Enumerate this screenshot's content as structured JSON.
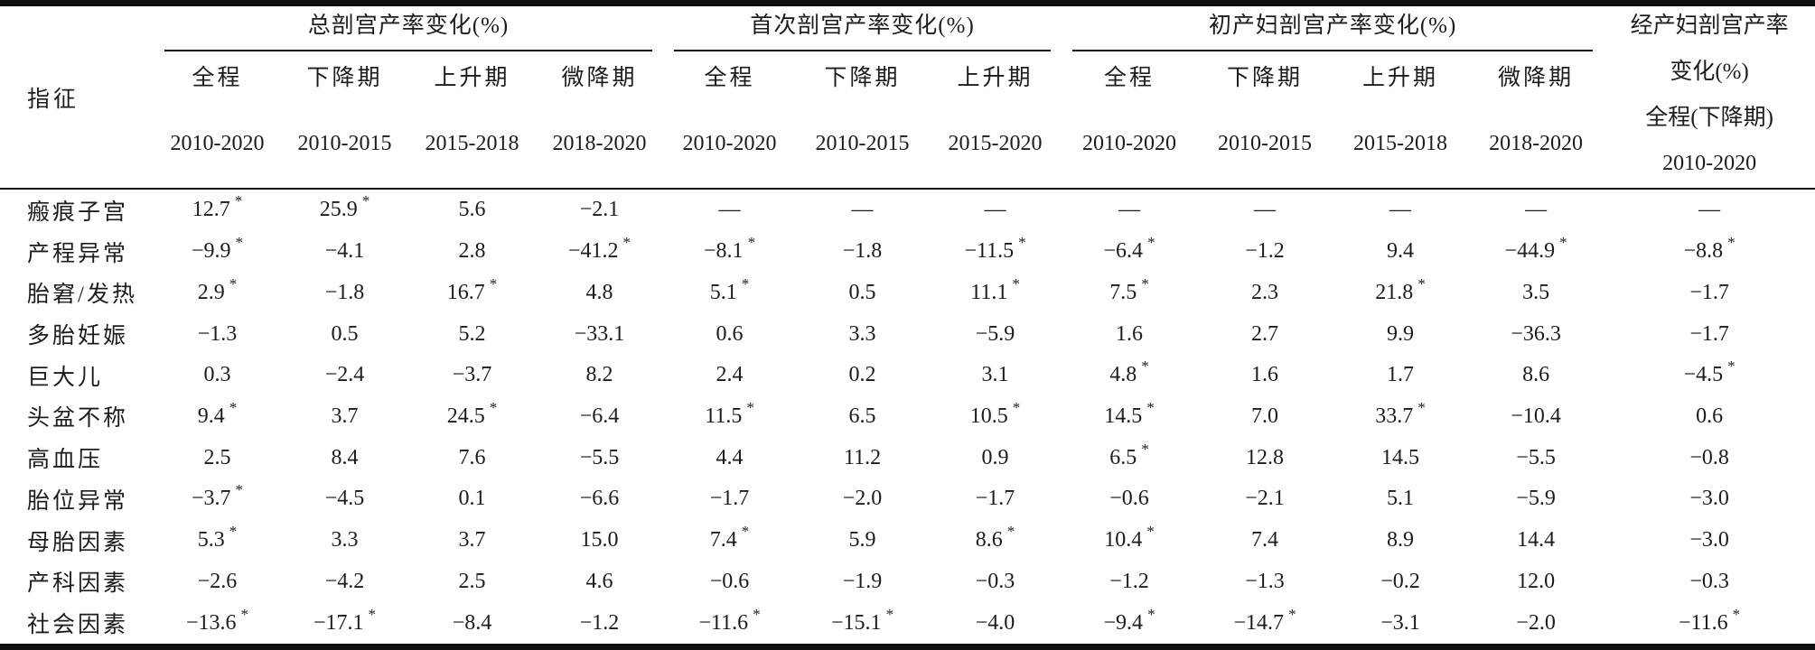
{
  "colors": {
    "background": "#ffffff",
    "text": "#1c1c1c",
    "rules": "#101010"
  },
  "table": {
    "corner_label": "指征",
    "groups": [
      {
        "title": "总剖宫产率变化(%)"
      },
      {
        "title": "首次剖宫产率变化(%)"
      },
      {
        "title": "初产妇剖宫产率变化(%)"
      }
    ],
    "last_column": {
      "line1": "经产妇剖宫产率",
      "line2": "变化(%)",
      "line3": "全程(下降期)",
      "line4": "2010-2020"
    },
    "columns": [
      {
        "period": "全程",
        "years": "2010-2020"
      },
      {
        "period": "下降期",
        "years": "2010-2015"
      },
      {
        "period": "上升期",
        "years": "2015-2018"
      },
      {
        "period": "微降期",
        "years": "2018-2020"
      },
      {
        "period": "全程",
        "years": "2010-2020"
      },
      {
        "period": "下降期",
        "years": "2010-2015"
      },
      {
        "period": "上升期",
        "years": "2015-2020"
      },
      {
        "period": "全程",
        "years": "2010-2020"
      },
      {
        "period": "下降期",
        "years": "2010-2015"
      },
      {
        "period": "上升期",
        "years": "2015-2018"
      },
      {
        "period": "微降期",
        "years": "2018-2020"
      }
    ],
    "rows": [
      {
        "label": "瘢痕子宫",
        "values": [
          "12.7*",
          "25.9*",
          "5.6",
          "−2.1",
          "—",
          "—",
          "—",
          "—",
          "—",
          "—",
          "—",
          "—"
        ]
      },
      {
        "label": "产程异常",
        "values": [
          "−9.9*",
          "−4.1",
          "2.8",
          "−41.2*",
          "−8.1*",
          "−1.8",
          "−11.5*",
          "−6.4*",
          "−1.2",
          "9.4",
          "−44.9*",
          "−8.8*"
        ]
      },
      {
        "label": "胎窘/发热",
        "values": [
          "2.9*",
          "−1.8",
          "16.7*",
          "4.8",
          "5.1*",
          "0.5",
          "11.1*",
          "7.5*",
          "2.3",
          "21.8*",
          "3.5",
          "−1.7"
        ]
      },
      {
        "label": "多胎妊娠",
        "values": [
          "−1.3",
          "0.5",
          "5.2",
          "−33.1",
          "0.6",
          "3.3",
          "−5.9",
          "1.6",
          "2.7",
          "9.9",
          "−36.3",
          "−1.7"
        ]
      },
      {
        "label": "巨大儿",
        "values": [
          "0.3",
          "−2.4",
          "−3.7",
          "8.2",
          "2.4",
          "0.2",
          "3.1",
          "4.8*",
          "1.6",
          "1.7",
          "8.6",
          "−4.5*"
        ]
      },
      {
        "label": "头盆不称",
        "values": [
          "9.4*",
          "3.7",
          "24.5*",
          "−6.4",
          "11.5*",
          "6.5",
          "10.5*",
          "14.5*",
          "7.0",
          "33.7*",
          "−10.4",
          "0.6"
        ]
      },
      {
        "label": "高血压",
        "values": [
          "2.5",
          "8.4",
          "7.6",
          "−5.5",
          "4.4",
          "11.2",
          "0.9",
          "6.5*",
          "12.8",
          "14.5",
          "−5.5",
          "−0.8"
        ]
      },
      {
        "label": "胎位异常",
        "values": [
          "−3.7*",
          "−4.5",
          "0.1",
          "−6.6",
          "−1.7",
          "−2.0",
          "−1.7",
          "−0.6",
          "−2.1",
          "5.1",
          "−5.9",
          "−3.0"
        ]
      },
      {
        "label": "母胎因素",
        "values": [
          "5.3*",
          "3.3",
          "3.7",
          "15.0",
          "7.4*",
          "5.9",
          "8.6*",
          "10.4*",
          "7.4",
          "8.9",
          "14.4",
          "−3.0"
        ]
      },
      {
        "label": "产科因素",
        "values": [
          "−2.6",
          "−4.2",
          "2.5",
          "4.6",
          "−0.6",
          "−1.9",
          "−0.3",
          "−1.2",
          "−1.3",
          "−0.2",
          "12.0",
          "−0.3"
        ]
      },
      {
        "label": "社会因素",
        "values": [
          "−13.6*",
          "−17.1*",
          "−8.4",
          "−1.2",
          "−11.6*",
          "−15.1*",
          "−4.0",
          "−9.4*",
          "−14.7*",
          "−3.1",
          "−2.0",
          "−11.6*"
        ]
      }
    ]
  }
}
